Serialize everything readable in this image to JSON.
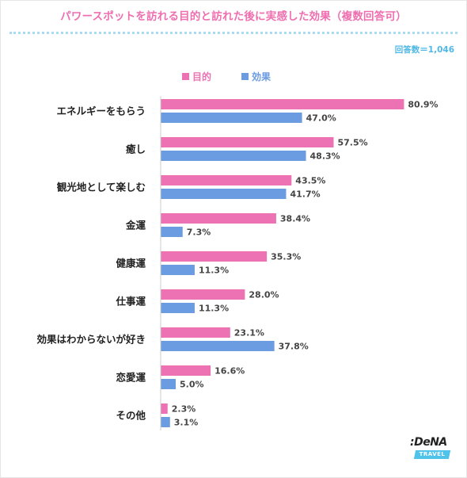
{
  "title": "パワースポットを訪れる目的と訪れた後に実感した効果（複数回答可）",
  "sample": "回答数＝1,046",
  "colors": {
    "purpose": "#ec72b3",
    "effect": "#6b9be0",
    "title": "#ee6fb0",
    "dots": "#a9dcf2",
    "sample": "#4fb8e6"
  },
  "logo": {
    "text": ":DeNA",
    "sub": "TRAVEL"
  },
  "chart_data": {
    "type": "bar",
    "orientation": "horizontal",
    "title": "パワースポットを訪れる目的と訪れた後に実感した効果（複数回答可）",
    "categories": [
      "エネルギーをもらう",
      "癒し",
      "観光地として楽しむ",
      "金運",
      "健康運",
      "仕事運",
      "効果はわからないが好き",
      "恋愛運",
      "その他"
    ],
    "series": [
      {
        "name": "目的",
        "values": [
          80.9,
          57.5,
          43.5,
          38.4,
          35.3,
          28.0,
          23.1,
          16.6,
          2.3
        ],
        "labels": [
          "80.9%",
          "57.5%",
          "43.5%",
          "38.4%",
          "35.3%",
          "28.0%",
          "23.1%",
          "16.6%",
          "2.3%"
        ]
      },
      {
        "name": "効果",
        "values": [
          47.0,
          48.3,
          41.7,
          7.3,
          11.3,
          11.3,
          37.8,
          5.0,
          3.1
        ],
        "labels": [
          "47.0%",
          "48.3%",
          "41.7%",
          "7.3%",
          "11.3%",
          "11.3%",
          "37.8%",
          "5.0%",
          "3.1%"
        ]
      }
    ],
    "unit": "%",
    "xlim": [
      0,
      100
    ],
    "grid": false,
    "legend": "top"
  }
}
